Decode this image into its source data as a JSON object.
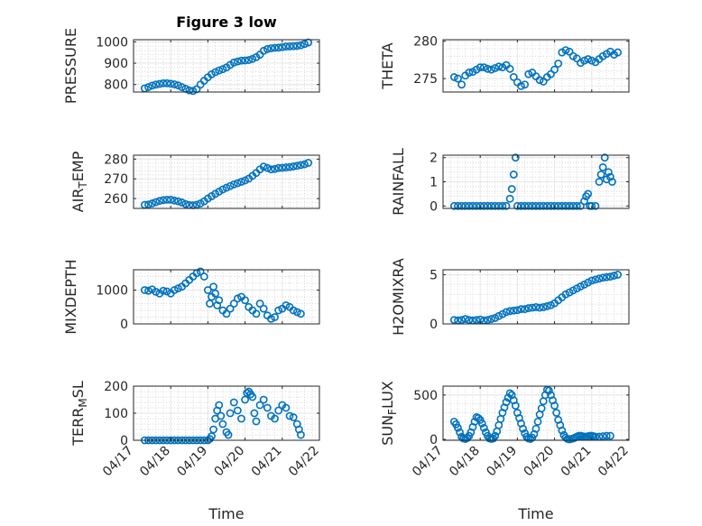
{
  "figure": {
    "title": "Figure 3 low",
    "xlabel": "Time",
    "x_tick_labels": [
      "04/17",
      "04/18",
      "04/19",
      "04/20",
      "04/21",
      "04/22"
    ],
    "marker_color": "#0072BD",
    "grid_color": "#d9d9d9"
  },
  "chart_data": [
    {
      "type": "scatter",
      "marker": "open-circle",
      "grid": true,
      "minor_grid": true,
      "ylabel": "PRESSURE",
      "ylabel_parts": [
        {
          "t": "PRESSURE",
          "sub": false
        }
      ],
      "ylim": [
        765,
        1010
      ],
      "yticks": [
        800,
        900,
        1000
      ],
      "ytick_labels": [
        "800",
        "900",
        "1000"
      ],
      "xlim": [
        0,
        5
      ],
      "show_x_ticklabels": false,
      "x": [
        0.3,
        0.4,
        0.5,
        0.6,
        0.7,
        0.8,
        0.9,
        1.0,
        1.1,
        1.2,
        1.3,
        1.4,
        1.5,
        1.6,
        1.7,
        1.8,
        1.9,
        2.0,
        2.1,
        2.2,
        2.3,
        2.4,
        2.5,
        2.6,
        2.7,
        2.8,
        2.9,
        3.0,
        3.1,
        3.2,
        3.3,
        3.4,
        3.5,
        3.6,
        3.7,
        3.8,
        3.9,
        4.0,
        4.1,
        4.2,
        4.3,
        4.4,
        4.5,
        4.6,
        4.7
      ],
      "y": [
        782,
        788,
        795,
        800,
        803,
        806,
        806,
        804,
        801,
        796,
        788,
        780,
        773,
        770,
        778,
        800,
        818,
        834,
        848,
        858,
        866,
        872,
        880,
        892,
        903,
        908,
        912,
        913,
        915,
        920,
        928,
        940,
        958,
        966,
        970,
        972,
        973,
        975,
        978,
        979,
        980,
        981,
        984,
        990,
        997
      ]
    },
    {
      "type": "scatter",
      "marker": "open-circle",
      "grid": true,
      "minor_grid": true,
      "ylabel": "THETA",
      "ylabel_parts": [
        {
          "t": "THETA",
          "sub": false
        }
      ],
      "ylim": [
        273.2,
        280.2
      ],
      "yticks": [
        275,
        280
      ],
      "ytick_labels": [
        "275",
        "280"
      ],
      "xlim": [
        0,
        5
      ],
      "show_x_ticklabels": false,
      "x": [
        0.3,
        0.4,
        0.5,
        0.6,
        0.7,
        0.8,
        0.9,
        1.0,
        1.1,
        1.2,
        1.3,
        1.4,
        1.5,
        1.6,
        1.7,
        1.8,
        1.9,
        2.0,
        2.1,
        2.2,
        2.3,
        2.4,
        2.5,
        2.6,
        2.7,
        2.8,
        2.9,
        3.0,
        3.1,
        3.2,
        3.3,
        3.4,
        3.5,
        3.6,
        3.7,
        3.8,
        3.9,
        4.0,
        4.1,
        4.2,
        4.3,
        4.4,
        4.5,
        4.6,
        4.7
      ],
      "y": [
        275.2,
        275.0,
        274.2,
        275.4,
        275.8,
        275.9,
        276.2,
        276.5,
        276.5,
        276.3,
        276.2,
        276.4,
        276.6,
        276.5,
        276.8,
        276.3,
        275.2,
        274.5,
        274.0,
        274.2,
        275.6,
        275.8,
        275.3,
        274.8,
        274.6,
        275.2,
        275.6,
        276.2,
        277.0,
        278.5,
        278.8,
        278.6,
        278.0,
        277.7,
        277.1,
        277.4,
        277.6,
        277.4,
        277.2,
        277.6,
        278.0,
        278.3,
        278.6,
        278.2,
        278.5
      ]
    },
    {
      "type": "scatter",
      "marker": "open-circle",
      "grid": true,
      "minor_grid": true,
      "ylabel": "AIR_TEMP",
      "ylabel_parts": [
        {
          "t": "AIR",
          "sub": false
        },
        {
          "t": "T",
          "sub": true
        },
        {
          "t": "EMP",
          "sub": false
        }
      ],
      "ylim": [
        255,
        282
      ],
      "yticks": [
        260,
        270,
        280
      ],
      "ytick_labels": [
        "260",
        "270",
        "280"
      ],
      "xlim": [
        0,
        5
      ],
      "show_x_ticklabels": false,
      "x": [
        0.3,
        0.4,
        0.5,
        0.6,
        0.7,
        0.8,
        0.9,
        1.0,
        1.1,
        1.2,
        1.3,
        1.4,
        1.5,
        1.6,
        1.7,
        1.8,
        1.9,
        2.0,
        2.1,
        2.2,
        2.3,
        2.4,
        2.5,
        2.6,
        2.7,
        2.8,
        2.9,
        3.0,
        3.1,
        3.2,
        3.3,
        3.4,
        3.5,
        3.6,
        3.7,
        3.8,
        3.9,
        4.0,
        4.1,
        4.2,
        4.3,
        4.4,
        4.5,
        4.6,
        4.7
      ],
      "y": [
        256.8,
        257.0,
        257.5,
        258.2,
        258.8,
        259.2,
        259.4,
        259.4,
        259.0,
        258.6,
        258.0,
        257.2,
        256.7,
        256.6,
        256.9,
        257.5,
        258.6,
        260.0,
        261.2,
        262.4,
        263.5,
        264.6,
        265.5,
        266.4,
        267.2,
        267.8,
        268.5,
        269.2,
        270.1,
        271.5,
        273.0,
        274.8,
        276.2,
        275.5,
        274.8,
        275.0,
        275.5,
        275.6,
        275.8,
        276.0,
        276.3,
        276.6,
        277.0,
        277.4,
        278.1
      ]
    },
    {
      "type": "scatter",
      "marker": "open-circle",
      "grid": true,
      "minor_grid": true,
      "ylabel": "RAINFALL",
      "ylabel_parts": [
        {
          "t": "RAINFALL",
          "sub": false
        }
      ],
      "ylim": [
        -0.1,
        2.1
      ],
      "yticks": [
        0,
        1,
        2
      ],
      "ytick_labels": [
        "0",
        "1",
        "2"
      ],
      "xlim": [
        0,
        5
      ],
      "show_x_ticklabels": false,
      "x": [
        0.3,
        0.4,
        0.5,
        0.6,
        0.7,
        0.8,
        0.9,
        1.0,
        1.1,
        1.2,
        1.3,
        1.4,
        1.5,
        1.6,
        1.7,
        1.8,
        1.85,
        1.9,
        1.95,
        2.0,
        2.1,
        2.2,
        2.3,
        2.4,
        2.5,
        2.6,
        2.7,
        2.8,
        2.9,
        3.0,
        3.1,
        3.2,
        3.3,
        3.4,
        3.5,
        3.6,
        3.7,
        3.8,
        3.85,
        3.9,
        3.95,
        4.0,
        4.1,
        4.2,
        4.25,
        4.3,
        4.35,
        4.4,
        4.45,
        4.5,
        4.55
      ],
      "y": [
        0,
        0,
        0,
        0,
        0,
        0,
        0,
        0,
        0,
        0,
        0,
        0,
        0,
        0,
        0,
        0.3,
        0.7,
        1.3,
        2.0,
        0,
        0,
        0,
        0,
        0,
        0,
        0,
        0,
        0,
        0,
        0,
        0,
        0,
        0,
        0,
        0,
        0,
        0,
        0.2,
        0.4,
        0.5,
        0,
        0,
        0,
        1.0,
        1.3,
        1.6,
        2.0,
        1.1,
        1.4,
        1.2,
        1.0
      ]
    },
    {
      "type": "scatter",
      "marker": "open-circle",
      "grid": true,
      "minor_grid": true,
      "ylabel": "MIXDEPTH",
      "ylabel_parts": [
        {
          "t": "MIXDEPTH",
          "sub": false
        }
      ],
      "ylim": [
        0,
        1600
      ],
      "yticks": [
        0,
        1000
      ],
      "ytick_labels": [
        "0",
        "1000"
      ],
      "xlim": [
        0,
        5
      ],
      "show_x_ticklabels": false,
      "x": [
        0.3,
        0.4,
        0.5,
        0.6,
        0.7,
        0.8,
        0.9,
        1.0,
        1.1,
        1.2,
        1.3,
        1.4,
        1.5,
        1.6,
        1.7,
        1.8,
        1.9,
        2.0,
        2.05,
        2.1,
        2.15,
        2.2,
        2.25,
        2.3,
        2.4,
        2.5,
        2.6,
        2.7,
        2.8,
        2.9,
        3.0,
        3.1,
        3.2,
        3.3,
        3.4,
        3.5,
        3.6,
        3.7,
        3.8,
        3.9,
        4.0,
        4.1,
        4.2,
        4.3,
        4.4,
        4.5
      ],
      "y": [
        1000,
        980,
        1020,
        950,
        900,
        980,
        960,
        900,
        1000,
        1050,
        1100,
        1200,
        1300,
        1400,
        1500,
        1550,
        1400,
        1000,
        600,
        800,
        1100,
        900,
        550,
        700,
        400,
        300,
        450,
        600,
        750,
        800,
        700,
        500,
        400,
        300,
        600,
        450,
        250,
        150,
        200,
        400,
        450,
        550,
        500,
        400,
        350,
        300
      ]
    },
    {
      "type": "scatter",
      "marker": "open-circle",
      "grid": true,
      "minor_grid": true,
      "ylabel": "H2OMIXRA",
      "ylabel_parts": [
        {
          "t": "H2OMIXRA",
          "sub": false
        }
      ],
      "ylim": [
        0,
        5.5
      ],
      "yticks": [
        0,
        5
      ],
      "ytick_labels": [
        "0",
        "5"
      ],
      "xlim": [
        0,
        5
      ],
      "show_x_ticklabels": false,
      "x": [
        0.3,
        0.4,
        0.5,
        0.6,
        0.7,
        0.8,
        0.9,
        1.0,
        1.1,
        1.2,
        1.3,
        1.4,
        1.5,
        1.6,
        1.7,
        1.8,
        1.9,
        2.0,
        2.1,
        2.2,
        2.3,
        2.4,
        2.5,
        2.6,
        2.7,
        2.8,
        2.9,
        3.0,
        3.1,
        3.2,
        3.3,
        3.4,
        3.5,
        3.6,
        3.7,
        3.8,
        3.9,
        4.0,
        4.1,
        4.2,
        4.3,
        4.4,
        4.5,
        4.6,
        4.7
      ],
      "y": [
        0.4,
        0.35,
        0.4,
        0.5,
        0.4,
        0.35,
        0.4,
        0.45,
        0.35,
        0.4,
        0.5,
        0.6,
        0.8,
        1.0,
        1.2,
        1.3,
        1.35,
        1.4,
        1.5,
        1.5,
        1.6,
        1.65,
        1.7,
        1.65,
        1.7,
        1.8,
        1.9,
        2.1,
        2.4,
        2.7,
        3.0,
        3.2,
        3.4,
        3.6,
        3.8,
        4.0,
        4.2,
        4.4,
        4.5,
        4.6,
        4.7,
        4.75,
        4.8,
        4.9,
        5.0
      ]
    },
    {
      "type": "scatter",
      "marker": "open-circle",
      "grid": true,
      "minor_grid": true,
      "ylabel": "TERR_MSL",
      "ylabel_parts": [
        {
          "t": "TERR",
          "sub": false
        },
        {
          "t": "M",
          "sub": true
        },
        {
          "t": "SL",
          "sub": false
        }
      ],
      "ylim": [
        0,
        200
      ],
      "yticks": [
        0,
        100,
        200
      ],
      "ytick_labels": [
        "0",
        "100",
        "200"
      ],
      "xlim": [
        0,
        5
      ],
      "show_x_ticklabels": true,
      "x": [
        0.3,
        0.4,
        0.5,
        0.6,
        0.7,
        0.8,
        0.9,
        1.0,
        1.1,
        1.2,
        1.3,
        1.4,
        1.5,
        1.6,
        1.7,
        1.8,
        1.9,
        2.0,
        2.05,
        2.1,
        2.15,
        2.2,
        2.25,
        2.3,
        2.35,
        2.4,
        2.5,
        2.55,
        2.6,
        2.7,
        2.8,
        2.9,
        3.0,
        3.05,
        3.1,
        3.15,
        3.2,
        3.25,
        3.3,
        3.4,
        3.5,
        3.6,
        3.7,
        3.8,
        3.9,
        4.0,
        4.1,
        4.2,
        4.3,
        4.4,
        4.45,
        4.5
      ],
      "y": [
        0,
        0,
        0,
        0,
        0,
        0,
        0,
        0,
        0,
        0,
        0,
        0,
        0,
        0,
        0,
        0,
        0,
        0,
        5,
        15,
        40,
        80,
        110,
        130,
        90,
        60,
        30,
        20,
        100,
        140,
        110,
        80,
        150,
        175,
        180,
        170,
        160,
        100,
        70,
        130,
        150,
        120,
        90,
        80,
        110,
        130,
        120,
        90,
        85,
        60,
        40,
        20
      ]
    },
    {
      "type": "scatter",
      "marker": "open-circle",
      "grid": true,
      "minor_grid": true,
      "ylabel": "SUN_FLUX",
      "ylabel_parts": [
        {
          "t": "SUN",
          "sub": false
        },
        {
          "t": "F",
          "sub": true
        },
        {
          "t": "LUX",
          "sub": false
        }
      ],
      "ylim": [
        -10,
        600
      ],
      "yticks": [
        0,
        500
      ],
      "ytick_labels": [
        "0",
        "500"
      ],
      "xlim": [
        0,
        5
      ],
      "show_x_ticklabels": true,
      "x": [
        0.3,
        0.35,
        0.4,
        0.45,
        0.5,
        0.55,
        0.6,
        0.65,
        0.7,
        0.75,
        0.8,
        0.85,
        0.9,
        0.95,
        1.0,
        1.05,
        1.1,
        1.15,
        1.2,
        1.25,
        1.3,
        1.35,
        1.4,
        1.45,
        1.5,
        1.55,
        1.6,
        1.65,
        1.7,
        1.75,
        1.8,
        1.85,
        1.9,
        1.95,
        2.0,
        2.05,
        2.1,
        2.15,
        2.2,
        2.25,
        2.3,
        2.35,
        2.4,
        2.45,
        2.5,
        2.55,
        2.6,
        2.65,
        2.7,
        2.75,
        2.8,
        2.85,
        2.9,
        2.95,
        3.0,
        3.05,
        3.1,
        3.15,
        3.2,
        3.25,
        3.3,
        3.35,
        3.4,
        3.45,
        3.5,
        3.55,
        3.6,
        3.65,
        3.7,
        3.75,
        3.8,
        3.85,
        3.9,
        3.95,
        4.0,
        4.05,
        4.1,
        4.2,
        4.3,
        4.4,
        4.5
      ],
      "y": [
        200,
        170,
        130,
        80,
        30,
        10,
        5,
        15,
        40,
        80,
        140,
        200,
        250,
        240,
        220,
        180,
        130,
        80,
        40,
        10,
        5,
        10,
        40,
        90,
        160,
        230,
        300,
        360,
        420,
        470,
        520,
        500,
        440,
        380,
        300,
        240,
        180,
        120,
        70,
        30,
        10,
        5,
        20,
        60,
        120,
        200,
        280,
        350,
        430,
        500,
        560,
        550,
        500,
        440,
        380,
        300,
        220,
        160,
        100,
        50,
        20,
        5,
        0,
        5,
        10,
        20,
        30,
        40,
        40,
        35,
        30,
        30,
        35,
        40,
        40,
        35,
        30,
        30,
        35,
        40,
        40
      ]
    }
  ]
}
